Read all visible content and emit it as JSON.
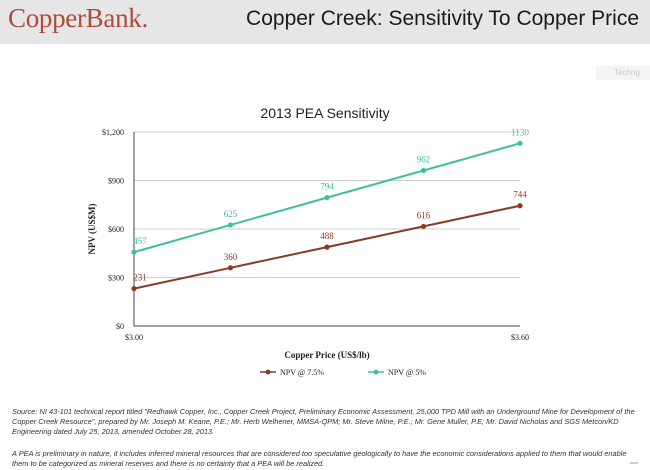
{
  "header": {
    "logo": "CopperBank.",
    "title": "Copper Creek:  Sensitivity To Copper Price"
  },
  "corner_mark": "Techng",
  "chart_data": {
    "type": "line",
    "title": "2013 PEA Sensitivity",
    "xlabel": "Copper Price (US$/lb)",
    "ylabel": "NPV (US$M)",
    "x_tick_labels": [
      "$3.00",
      "$3.60"
    ],
    "y_ticks": [
      0,
      300,
      600,
      900,
      1200
    ],
    "y_tick_labels": [
      "$0",
      "$300",
      "$600",
      "$900",
      "$1,200"
    ],
    "ylim": [
      0,
      1200
    ],
    "legend_position": "bottom",
    "x": [
      3.0,
      3.15,
      3.3,
      3.45,
      3.6
    ],
    "series": [
      {
        "name": "NPV @ 7.5%",
        "color": "#8b3a26",
        "values": [
          231,
          360,
          488,
          616,
          744
        ]
      },
      {
        "name": "NPV @ 5%",
        "color": "#3fbfa0",
        "values": [
          457,
          625,
          794,
          962,
          1130
        ]
      }
    ]
  },
  "source_text": "Source: NI 43-101 technical report titled \"Redhawk Copper, Inc., Copper Creek Project, Preliminary Economic Assessment, 25,000 TPD Mill with an Underground Mine for Development of the Copper Creek Resource\", prepared by Mr. Joseph M. Keane, P.E.; Mr. Herb Welhener, MMSA-QPM; Mr. Steve Milne, P.E.; Mr. Gene Muller, P.E; Mr. David Nicholas and SGS Metcon/KD Engineering dated July 25, 2013, amended October 28, 2013.",
  "note_text": "A PEA is preliminary in nature, it includes inferred mineral resources that are considered too speculative geologically to have the economic considerations applied to them that would enable them to be categorized as mineral reserves and there is no certainty that a PEA will be realized."
}
